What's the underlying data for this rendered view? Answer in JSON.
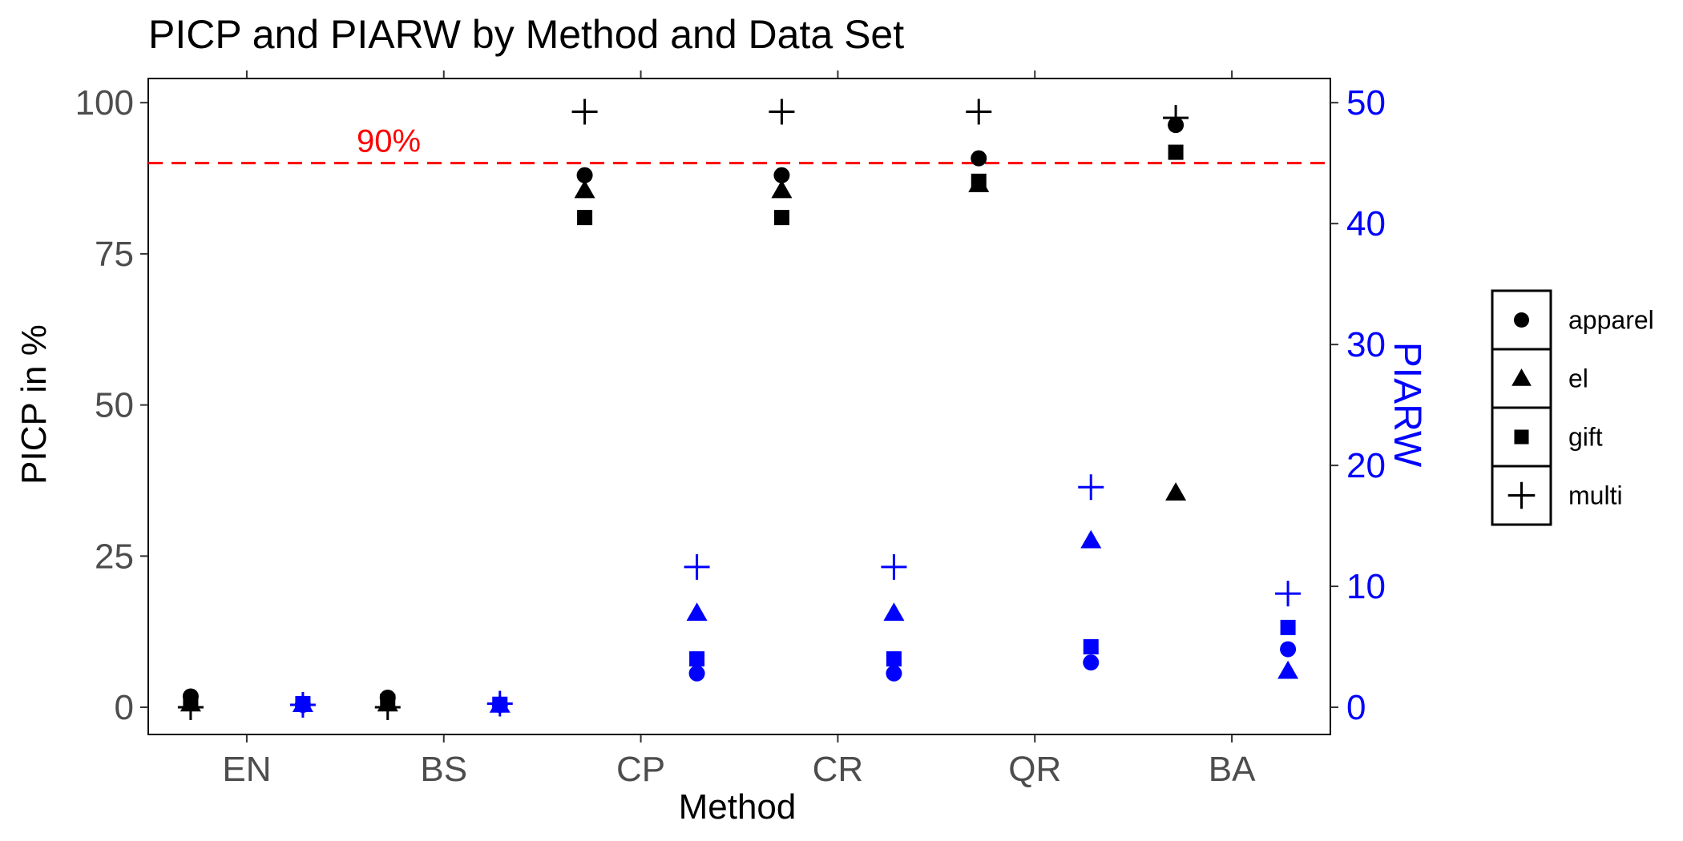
{
  "chart_data": {
    "type": "scatter",
    "title": "PICP and PIARW by Method and Data Set",
    "xlabel": "Method",
    "ylabel_left": "PICP in %",
    "ylabel_right": "PIARW",
    "categories": [
      "EN",
      "BS",
      "CP",
      "CR",
      "QR",
      "BA"
    ],
    "ylim_left": [
      -4.5,
      104
    ],
    "ylim_right": [
      -2.25,
      52
    ],
    "yticks_left": [
      0,
      25,
      50,
      75,
      100
    ],
    "yticks_right": [
      0,
      10,
      20,
      30,
      40,
      50
    ],
    "reference_line": {
      "value": 90,
      "label": "90%",
      "color": "#ff0000",
      "style": "dashed"
    },
    "grid": false,
    "legend_position": "right",
    "series": [
      {
        "name": "apparel",
        "shape": "circle",
        "picp": [
          1.8,
          1.6,
          88,
          88,
          90.8,
          96.3
        ],
        "piarw": [
          0.2,
          0.2,
          2.8,
          2.8,
          3.7,
          4.8
        ]
      },
      {
        "name": "el",
        "shape": "triangle",
        "picp": [
          0.6,
          0.6,
          85.5,
          85.5,
          86.5,
          35.5
        ],
        "piarw": [
          0.25,
          0.2,
          7.8,
          7.8,
          13.8,
          3.0
        ]
      },
      {
        "name": "gift",
        "shape": "square",
        "picp": [
          1.0,
          1.0,
          81,
          81,
          87,
          91.8
        ],
        "piarw": [
          0.3,
          0.25,
          4.0,
          4.0,
          5.0,
          6.6
        ]
      },
      {
        "name": "multi",
        "shape": "plus",
        "picp": [
          0,
          0,
          98.5,
          98.5,
          98.5,
          97.5
        ],
        "piarw": [
          0.2,
          0.3,
          11.6,
          11.6,
          18.2,
          9.4
        ]
      }
    ],
    "colors": {
      "picp": "#000000",
      "piarw": "#0000ff",
      "reference": "#ff0000"
    }
  }
}
